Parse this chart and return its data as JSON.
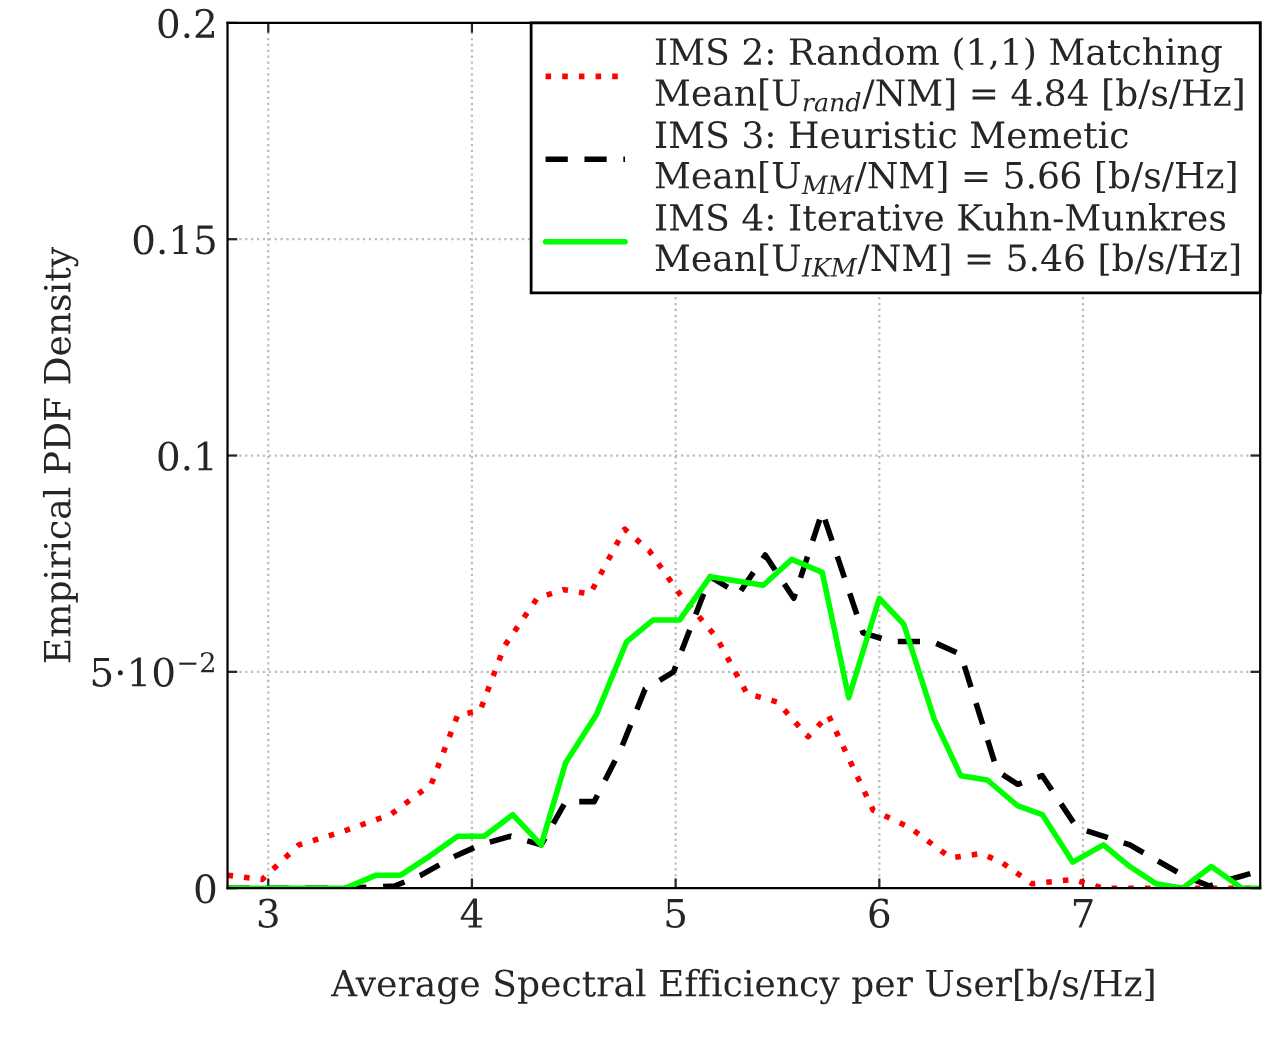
{
  "chart_data": {
    "type": "line",
    "xlabel": "Average Spectral Efficiency per User[b/s/Hz]",
    "ylabel": "Empirical PDF Density",
    "xlim": [
      2.8,
      7.87
    ],
    "xticks": [
      3,
      4,
      5,
      6,
      7
    ],
    "ylim": [
      0,
      0.2
    ],
    "yticks": [
      0,
      {
        "value": 0.05,
        "label": "5·10$^{−2}$"
      },
      0.1,
      0.15,
      0.2
    ],
    "grid": true,
    "legend": "top right",
    "marker": "none",
    "series": [
      {
        "name": "IMS 2: Random (1,1) Matching\nMean[U$_{rand}$/NM] = 4.84 [b/s/Hz]",
        "color": "#ff0000",
        "line_style": "dotted",
        "x": [
          2.8,
          2.97,
          3.15,
          3.36,
          3.6,
          3.8,
          3.93,
          4.04,
          4.16,
          4.32,
          4.45,
          4.58,
          4.75,
          4.87,
          5.02,
          5.2,
          5.35,
          5.5,
          5.65,
          5.75,
          5.97,
          6.15,
          6.35,
          6.5,
          6.6,
          6.75,
          6.95,
          7.1,
          7.87
        ],
        "values": [
          0.003,
          0.002,
          0.01,
          0.013,
          0.017,
          0.024,
          0.04,
          0.041,
          0.056,
          0.067,
          0.069,
          0.068,
          0.083,
          0.078,
          0.068,
          0.058,
          0.045,
          0.043,
          0.035,
          0.04,
          0.018,
          0.014,
          0.007,
          0.008,
          0.006,
          0.001,
          0.002,
          0,
          0
        ]
      },
      {
        "name": "IMS 3: Heuristic Memetic\nMean[U$_{MM}$/NM] = 5.66 [b/s/Hz]",
        "color": "#000000",
        "line_style": "dashed",
        "x": [
          2.8,
          3.38,
          3.62,
          3.75,
          3.9,
          4.04,
          4.19,
          4.34,
          4.46,
          4.6,
          4.73,
          4.85,
          4.99,
          5.17,
          5.31,
          5.44,
          5.58,
          5.72,
          5.92,
          6.06,
          6.26,
          6.4,
          6.58,
          6.68,
          6.8,
          6.97,
          7.23,
          7.49,
          7.62,
          7.72,
          7.87
        ],
        "values": [
          0,
          0,
          0.0005,
          0.003,
          0.007,
          0.01,
          0.012,
          0.01,
          0.02,
          0.02,
          0.032,
          0.046,
          0.05,
          0.072,
          0.068,
          0.077,
          0.067,
          0.087,
          0.059,
          0.057,
          0.057,
          0.054,
          0.027,
          0.024,
          0.026,
          0.014,
          0.01,
          0.003,
          0.0005,
          0.002,
          0.004
        ]
      },
      {
        "name": "IMS 4: Iterative Kuhn-Munkres\nMean[U$_{IKM}$/NM] = 5.46 [b/s/Hz]",
        "color": "#00ff00",
        "line_style": "solid",
        "x": [
          2.8,
          3.38,
          3.53,
          3.65,
          3.78,
          3.93,
          4.06,
          4.2,
          4.34,
          4.46,
          4.61,
          4.76,
          4.89,
          5.02,
          5.17,
          5.43,
          5.57,
          5.72,
          5.85,
          6.0,
          6.12,
          6.27,
          6.4,
          6.53,
          6.68,
          6.8,
          6.95,
          7.1,
          7.23,
          7.36,
          7.49,
          7.63,
          7.78,
          7.87
        ],
        "values": [
          0,
          0,
          0.003,
          0.003,
          0.007,
          0.012,
          0.012,
          0.017,
          0.01,
          0.029,
          0.04,
          0.057,
          0.062,
          0.062,
          0.072,
          0.07,
          0.076,
          0.073,
          0.044,
          0.067,
          0.061,
          0.039,
          0.026,
          0.025,
          0.019,
          0.017,
          0.006,
          0.01,
          0.005,
          0.001,
          0,
          0.005,
          0,
          0
        ]
      }
    ]
  }
}
